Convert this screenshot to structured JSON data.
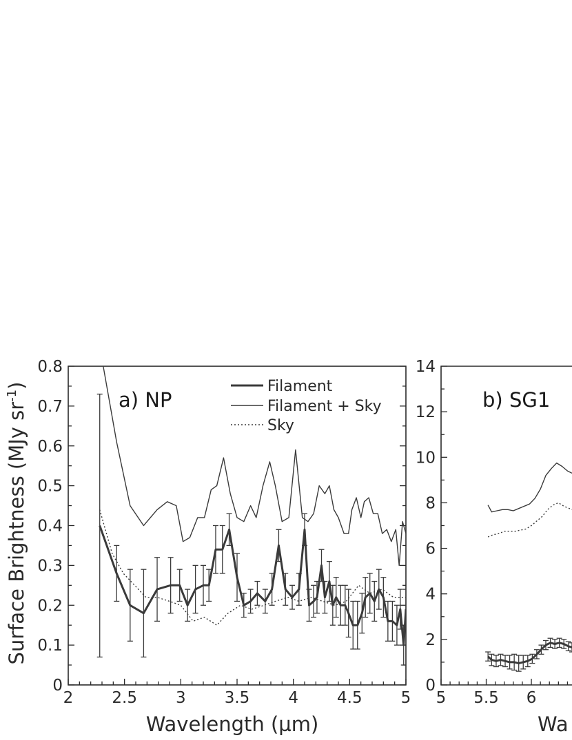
{
  "chart_data": [
    {
      "type": "line",
      "panel_label": "a) NP",
      "xlabel": "Wavelength (µm)",
      "ylabel": "Surface Brightness (MJy sr",
      "ylabel_sup": "-1",
      "ylabel_close": ")",
      "xlim": [
        2,
        5
      ],
      "ylim": [
        0,
        0.8
      ],
      "xticks": [
        2,
        2.5,
        3,
        3.5,
        4,
        4.5,
        5
      ],
      "xtick_labels": [
        "2",
        "2.5",
        "3",
        "3.5",
        "4",
        "4.5",
        "5"
      ],
      "yticks": [
        0,
        0.1,
        0.2,
        0.3,
        0.4,
        0.5,
        0.6,
        0.7,
        0.8
      ],
      "ytick_labels": [
        "0",
        "0.1",
        "0.2",
        "0.3",
        "0.4",
        "0.5",
        "0.6",
        "0.7",
        "0.8"
      ],
      "legend": {
        "placement": "top-right",
        "entries": [
          {
            "label": "Filament",
            "style": "thick"
          },
          {
            "label": "Filament + Sky",
            "style": "thin"
          },
          {
            "label": "Sky",
            "style": "dotted"
          }
        ]
      },
      "series": [
        {
          "name": "Filament",
          "style": "thick",
          "x": [
            2.28,
            2.43,
            2.55,
            2.67,
            2.79,
            2.91,
            2.99,
            3.06,
            3.13,
            3.2,
            3.25,
            3.31,
            3.37,
            3.43,
            3.5,
            3.56,
            3.62,
            3.68,
            3.75,
            3.81,
            3.87,
            3.93,
            3.99,
            4.05,
            4.1,
            4.14,
            4.18,
            4.21,
            4.25,
            4.28,
            4.32,
            4.35,
            4.38,
            4.42,
            4.46,
            4.49,
            4.53,
            4.57,
            4.61,
            4.64,
            4.68,
            4.72,
            4.76,
            4.8,
            4.84,
            4.88,
            4.92,
            4.95,
            4.98,
            5.0
          ],
          "y": [
            0.4,
            0.28,
            0.2,
            0.18,
            0.24,
            0.25,
            0.25,
            0.2,
            0.24,
            0.25,
            0.25,
            0.34,
            0.34,
            0.39,
            0.27,
            0.2,
            0.21,
            0.23,
            0.21,
            0.24,
            0.35,
            0.24,
            0.22,
            0.24,
            0.39,
            0.2,
            0.21,
            0.22,
            0.3,
            0.22,
            0.26,
            0.2,
            0.22,
            0.2,
            0.2,
            0.18,
            0.15,
            0.15,
            0.18,
            0.22,
            0.23,
            0.21,
            0.24,
            0.22,
            0.16,
            0.16,
            0.15,
            0.19,
            0.1,
            0.19
          ],
          "err": [
            0.33,
            0.07,
            0.09,
            0.11,
            0.08,
            0.07,
            0.04,
            0.04,
            0.06,
            0.05,
            0.04,
            0.06,
            0.06,
            0.04,
            0.06,
            0.03,
            0.03,
            0.03,
            0.03,
            0.04,
            0.04,
            0.04,
            0.03,
            0.04,
            0.04,
            0.04,
            0.04,
            0.04,
            0.04,
            0.04,
            0.05,
            0.05,
            0.05,
            0.05,
            0.05,
            0.06,
            0.06,
            0.06,
            0.05,
            0.05,
            0.05,
            0.05,
            0.05,
            0.05,
            0.05,
            0.05,
            0.05,
            0.05,
            0.05,
            0.05
          ]
        },
        {
          "name": "Filament + Sky",
          "style": "thin",
          "x": [
            2.14,
            2.28,
            2.43,
            2.55,
            2.67,
            2.79,
            2.88,
            2.96,
            3.02,
            3.08,
            3.15,
            3.21,
            3.27,
            3.32,
            3.38,
            3.44,
            3.5,
            3.56,
            3.62,
            3.67,
            3.73,
            3.79,
            3.84,
            3.9,
            3.96,
            4.02,
            4.08,
            4.13,
            4.18,
            4.23,
            4.28,
            4.32,
            4.36,
            4.4,
            4.45,
            4.49,
            4.52,
            4.56,
            4.6,
            4.63,
            4.67,
            4.71,
            4.75,
            4.79,
            4.83,
            4.87,
            4.91,
            4.94,
            4.97,
            5.0
          ],
          "y": [
            1.05,
            0.85,
            0.61,
            0.45,
            0.4,
            0.44,
            0.46,
            0.45,
            0.36,
            0.37,
            0.42,
            0.42,
            0.49,
            0.5,
            0.57,
            0.48,
            0.42,
            0.41,
            0.45,
            0.42,
            0.5,
            0.56,
            0.5,
            0.41,
            0.42,
            0.59,
            0.42,
            0.41,
            0.43,
            0.5,
            0.48,
            0.5,
            0.44,
            0.42,
            0.38,
            0.38,
            0.44,
            0.47,
            0.42,
            0.46,
            0.47,
            0.43,
            0.43,
            0.38,
            0.39,
            0.36,
            0.39,
            0.3,
            0.41,
            0.38
          ]
        },
        {
          "name": "Sky",
          "style": "dotted",
          "x": [
            2.28,
            2.39,
            2.49,
            2.59,
            2.69,
            2.79,
            2.9,
            3.0,
            3.11,
            3.21,
            3.32,
            3.42,
            3.53,
            3.63,
            3.74,
            3.84,
            3.95,
            4.05,
            4.16,
            4.26,
            4.37,
            4.47,
            4.58,
            4.68,
            4.79,
            4.89,
            5.0
          ],
          "y": [
            0.44,
            0.33,
            0.28,
            0.25,
            0.22,
            0.22,
            0.21,
            0.2,
            0.16,
            0.17,
            0.15,
            0.18,
            0.2,
            0.19,
            0.2,
            0.21,
            0.22,
            0.21,
            0.22,
            0.21,
            0.2,
            0.21,
            0.25,
            0.23,
            0.24,
            0.22,
            0.22
          ]
        }
      ]
    },
    {
      "type": "line",
      "panel_label": "b) SG1",
      "xlabel": "Wa",
      "xlim": [
        5,
        6.45
      ],
      "ylim": [
        0,
        14
      ],
      "xticks": [
        5,
        5.5,
        6
      ],
      "xtick_labels": [
        "5",
        "5.5",
        "6"
      ],
      "yticks": [
        0,
        2,
        4,
        6,
        8,
        10,
        12,
        14
      ],
      "ytick_labels": [
        "0",
        "2",
        "4",
        "6",
        "8",
        "10",
        "12",
        "14"
      ],
      "series": [
        {
          "style": "thin",
          "x": [
            5.52,
            5.56,
            5.62,
            5.68,
            5.74,
            5.8,
            5.86,
            5.92,
            5.98,
            6.04,
            6.1,
            6.16,
            6.22,
            6.28,
            6.34,
            6.4,
            6.45
          ],
          "y": [
            7.9,
            7.6,
            7.65,
            7.7,
            7.7,
            7.65,
            7.75,
            7.85,
            7.95,
            8.2,
            8.6,
            9.2,
            9.5,
            9.75,
            9.6,
            9.4,
            9.3
          ]
        },
        {
          "style": "dotted",
          "x": [
            5.52,
            5.58,
            5.64,
            5.7,
            5.76,
            5.82,
            5.88,
            5.94,
            6.0,
            6.06,
            6.12,
            6.18,
            6.24,
            6.3,
            6.36,
            6.42,
            6.45
          ],
          "y": [
            6.5,
            6.6,
            6.65,
            6.75,
            6.75,
            6.75,
            6.8,
            6.85,
            7.0,
            7.2,
            7.4,
            7.7,
            7.9,
            8.0,
            7.85,
            7.75,
            7.7
          ]
        },
        {
          "style": "thick",
          "x": [
            5.52,
            5.56,
            5.61,
            5.66,
            5.71,
            5.76,
            5.81,
            5.86,
            5.91,
            5.96,
            6.01,
            6.06,
            6.11,
            6.16,
            6.21,
            6.26,
            6.31,
            6.36,
            6.41,
            6.45
          ],
          "y": [
            1.25,
            1.1,
            1.05,
            1.1,
            1.05,
            1.0,
            1.0,
            0.95,
            1.0,
            1.05,
            1.15,
            1.35,
            1.55,
            1.75,
            1.85,
            1.8,
            1.85,
            1.8,
            1.7,
            1.65
          ],
          "err": [
            0.2,
            0.25,
            0.25,
            0.25,
            0.25,
            0.3,
            0.35,
            0.35,
            0.3,
            0.25,
            0.2,
            0.2,
            0.2,
            0.2,
            0.2,
            0.2,
            0.2,
            0.2,
            0.2,
            0.2
          ]
        }
      ]
    }
  ]
}
